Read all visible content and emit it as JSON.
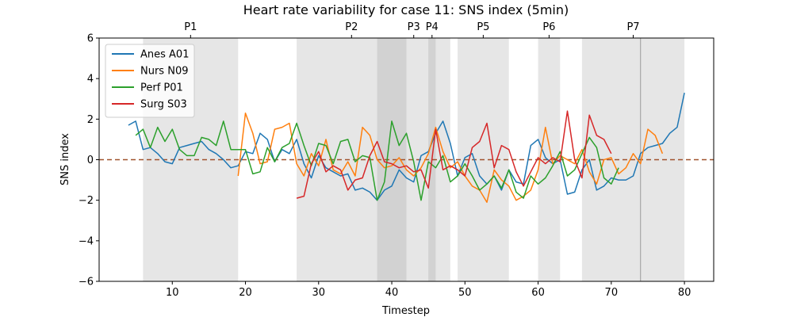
{
  "chart_data": {
    "type": "line",
    "title": "Heart rate variability for case 11: SNS index (5min)",
    "xlabel": "Timestep",
    "ylabel": "SNS index",
    "xlim": [
      0,
      84
    ],
    "ylim": [
      -6,
      6
    ],
    "x_ticks": [
      10,
      20,
      30,
      40,
      50,
      60,
      70,
      80
    ],
    "y_ticks": [
      -6,
      -4,
      -2,
      0,
      2,
      4,
      6
    ],
    "legend_position": "top-left",
    "reference_line": {
      "y": 0,
      "color": "#a0522d",
      "style": "dashed"
    },
    "phases": [
      {
        "label": "P1",
        "start": 6,
        "end": 19
      },
      {
        "label": "P2",
        "start": 27,
        "end": 42
      },
      {
        "label": "P3",
        "start": 38,
        "end": 48
      },
      {
        "label": "P4",
        "start": 45,
        "end": 46
      },
      {
        "label": "P5",
        "start": 49,
        "end": 56
      },
      {
        "label": "P6",
        "start": 60,
        "end": 63
      },
      {
        "label": "P7",
        "start": 66,
        "end": 80
      }
    ],
    "phase_divider_x": 74,
    "series": [
      {
        "name": "Anes A01",
        "color": "#1f77b4",
        "x": [
          4,
          5,
          6,
          7,
          8,
          9,
          10,
          11,
          12,
          13,
          14,
          15,
          16,
          17,
          18,
          19,
          20,
          21,
          22,
          23,
          24,
          25,
          26,
          27,
          28,
          29,
          30,
          31,
          32,
          33,
          34,
          35,
          36,
          37,
          38,
          39,
          40,
          41,
          42,
          43,
          44,
          45,
          46,
          47,
          48,
          49,
          50,
          51,
          52,
          53,
          54,
          55,
          56,
          57,
          58,
          59,
          60,
          61,
          62,
          63,
          64,
          65,
          66,
          67,
          68,
          69,
          70,
          71,
          72,
          73,
          74,
          75,
          76,
          77,
          78,
          79,
          80
        ],
        "y": [
          1.7,
          1.9,
          0.5,
          0.6,
          0.3,
          -0.1,
          -0.2,
          0.6,
          0.7,
          0.8,
          0.9,
          0.5,
          0.3,
          0.0,
          -0.4,
          -0.3,
          0.4,
          0.3,
          1.3,
          1.0,
          -0.1,
          0.5,
          0.3,
          1.0,
          -0.2,
          -0.9,
          0.2,
          -0.4,
          -0.6,
          -0.8,
          -0.7,
          -1.5,
          -1.4,
          -1.6,
          -2.0,
          -1.5,
          -1.3,
          -0.5,
          -0.9,
          -1.1,
          0.2,
          0.4,
          1.3,
          1.9,
          0.8,
          -0.8,
          0.1,
          0.3,
          -0.8,
          -1.2,
          -0.8,
          -1.5,
          -0.5,
          -1.1,
          -1.2,
          0.7,
          1.0,
          0.1,
          -0.2,
          0.0,
          -1.7,
          -1.6,
          -0.5,
          0.0,
          -1.5,
          -1.3,
          -0.9,
          -1.0,
          -1.0,
          -0.8,
          0.3,
          0.6,
          0.7,
          0.8,
          1.3,
          1.6,
          3.3
        ]
      },
      {
        "name": "Nurs N09",
        "color": "#ff7f0e",
        "x": [
          19,
          20,
          21,
          22,
          23,
          24,
          25,
          26,
          27,
          28,
          29,
          30,
          31,
          32,
          33,
          34,
          35,
          36,
          37,
          38,
          39,
          40,
          41,
          42,
          43,
          44,
          45,
          46,
          47,
          48,
          49,
          50,
          51,
          52,
          53,
          54,
          55,
          56,
          57,
          58,
          59,
          60,
          61,
          62,
          63,
          64,
          65,
          66,
          67,
          68,
          69,
          70,
          71,
          72,
          73,
          74,
          75,
          76,
          77
        ],
        "y": [
          -0.8,
          2.3,
          1.3,
          -0.2,
          -0.1,
          1.5,
          1.6,
          1.8,
          -0.2,
          -0.8,
          0.3,
          -0.3,
          1.0,
          -0.5,
          -0.7,
          -0.1,
          -0.8,
          1.6,
          1.2,
          0.0,
          -0.4,
          -0.3,
          0.1,
          -0.5,
          -0.8,
          -0.4,
          0.3,
          1.6,
          0.4,
          -0.4,
          -0.1,
          -0.8,
          -1.3,
          -1.5,
          -2.1,
          -0.5,
          -1.0,
          -1.3,
          -2.0,
          -1.8,
          -1.5,
          -0.5,
          1.6,
          -0.2,
          0.2,
          0.0,
          -0.2,
          0.5,
          -0.6,
          -1.2,
          0.0,
          0.1,
          -0.7,
          -0.4,
          0.3,
          -0.2,
          1.5,
          1.2,
          0.3
        ]
      },
      {
        "name": "Perf P01",
        "color": "#2ca02c",
        "x": [
          5,
          6,
          7,
          8,
          9,
          10,
          11,
          12,
          13,
          14,
          15,
          16,
          17,
          18,
          19,
          20,
          21,
          22,
          23,
          24,
          25,
          26,
          27,
          28,
          29,
          30,
          31,
          32,
          33,
          34,
          35,
          36,
          37,
          38,
          39,
          40,
          41,
          42,
          43,
          44,
          45,
          46,
          47,
          48,
          49,
          50,
          51,
          52,
          53,
          54,
          55,
          56,
          57,
          58,
          59,
          60,
          61,
          62,
          63,
          64,
          65,
          66,
          67,
          68,
          69,
          70,
          71
        ],
        "y": [
          1.2,
          1.5,
          0.6,
          1.6,
          0.9,
          1.5,
          0.5,
          0.2,
          0.2,
          1.1,
          1.0,
          0.7,
          1.9,
          0.5,
          0.5,
          0.5,
          -0.7,
          -0.6,
          0.6,
          -0.1,
          0.6,
          0.8,
          1.8,
          0.7,
          -0.3,
          0.8,
          0.7,
          -0.2,
          0.9,
          1.0,
          -0.1,
          0.2,
          0.1,
          -2.0,
          -1.1,
          1.9,
          0.7,
          1.3,
          -0.1,
          -2.0,
          -0.1,
          -0.4,
          0.2,
          -1.1,
          -0.8,
          -0.2,
          -0.8,
          -1.5,
          -1.2,
          -0.8,
          -1.4,
          -0.5,
          -1.6,
          -1.9,
          -0.8,
          -1.2,
          -0.9,
          -0.3,
          0.4,
          -0.8,
          -0.5,
          0.3,
          1.1,
          0.6,
          -0.9,
          -1.2,
          -0.4
        ]
      },
      {
        "name": "Surg S03",
        "color": "#d62728",
        "x": [
          27,
          28,
          29,
          30,
          31,
          32,
          33,
          34,
          35,
          36,
          37,
          38,
          39,
          40,
          41,
          42,
          43,
          44,
          45,
          46,
          47,
          48,
          49,
          50,
          51,
          52,
          53,
          54,
          55,
          56,
          57,
          58,
          59,
          60,
          61,
          62,
          63,
          64,
          65,
          66,
          67,
          68,
          69,
          70
        ],
        "y": [
          -1.9,
          -1.8,
          -0.2,
          0.4,
          -0.6,
          -0.3,
          -0.5,
          -1.5,
          -1.0,
          -0.9,
          0.2,
          0.9,
          -0.1,
          -0.2,
          -0.4,
          -0.3,
          -0.6,
          -0.5,
          -1.4,
          1.5,
          -0.5,
          -0.3,
          -0.5,
          -0.8,
          0.6,
          0.9,
          1.8,
          -0.4,
          0.7,
          0.5,
          -0.6,
          -1.3,
          -0.6,
          0.1,
          -0.2,
          0.1,
          -0.1,
          2.4,
          0.0,
          -0.9,
          2.2,
          1.2,
          1.0,
          0.3
        ]
      }
    ]
  }
}
